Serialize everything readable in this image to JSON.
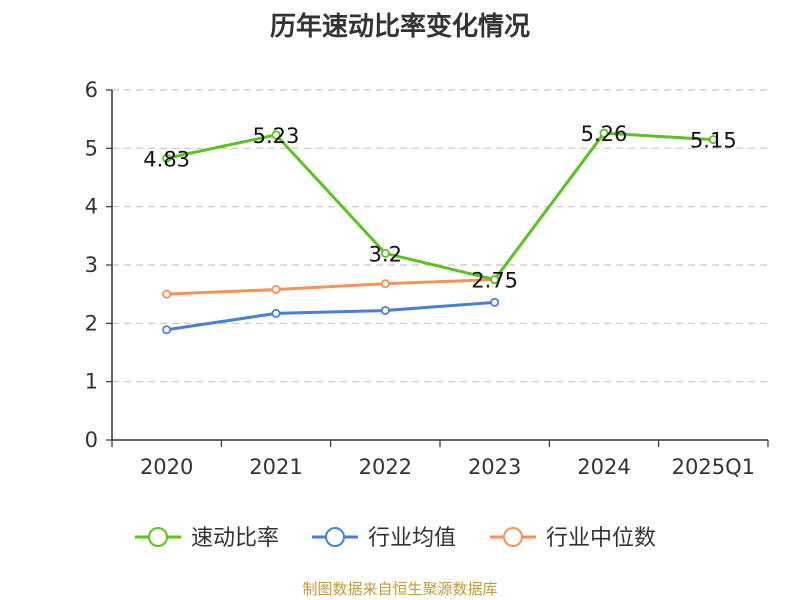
{
  "chart_data": {
    "type": "line",
    "title": "历年速动比率变化情况",
    "categories": [
      "2020",
      "2021",
      "2022",
      "2023",
      "2024",
      "2025Q1"
    ],
    "ylim": [
      0,
      6
    ],
    "yticks": [
      "0",
      "1",
      "2",
      "3",
      "4",
      "5",
      "6"
    ],
    "grid": true,
    "legend_position": "bottom",
    "series": [
      {
        "name": "速动比率",
        "color": "#5cc220",
        "values": [
          4.83,
          5.23,
          3.2,
          2.75,
          5.26,
          5.15
        ],
        "labels": [
          "4.83",
          "5.23",
          "3.2",
          "2.75",
          "5.26",
          "5.15"
        ]
      },
      {
        "name": "行业均值",
        "color": "#4a7fd6",
        "values": [
          1.89,
          2.17,
          2.22,
          2.36,
          null,
          null
        ]
      },
      {
        "name": "行业中位数",
        "color": "#f5925a",
        "values": [
          2.5,
          2.58,
          2.68,
          2.75,
          null,
          null
        ]
      }
    ]
  },
  "footer": {
    "source": "制图数据来自恒生聚源数据库"
  }
}
